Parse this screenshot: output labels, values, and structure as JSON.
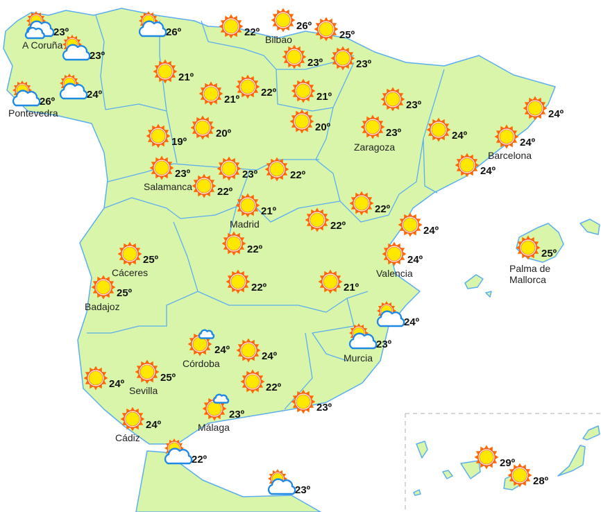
{
  "map": {
    "land_color": "#d9f5a9",
    "border_color": "#5aaef0",
    "sun_color": "#ffe800",
    "sun_rays_color": "#ff6a00",
    "cloud_stroke_color": "#1e88e5"
  },
  "forecasts": [
    {
      "icon": "partly-cloudy-icon",
      "temp": "23º",
      "city": "A Coruña"
    },
    {
      "icon": "partly-cloudy-icon",
      "temp": "23º",
      "city": ""
    },
    {
      "icon": "partly-cloudy-icon",
      "temp": "26º",
      "city": "Pontevedra"
    },
    {
      "icon": "partly-cloudy-icon",
      "temp": "24º",
      "city": ""
    },
    {
      "icon": "partly-cloudy-icon",
      "temp": "26º",
      "city": ""
    },
    {
      "icon": "sun-icon",
      "temp": "22º",
      "city": ""
    },
    {
      "icon": "sun-icon",
      "temp": "26º",
      "city": "Bilbao"
    },
    {
      "icon": "sun-icon",
      "temp": "25º",
      "city": ""
    },
    {
      "icon": "sun-icon",
      "temp": "23º",
      "city": ""
    },
    {
      "icon": "sun-icon",
      "temp": "23º",
      "city": ""
    },
    {
      "icon": "sun-icon",
      "temp": "21º",
      "city": ""
    },
    {
      "icon": "sun-icon",
      "temp": "21º",
      "city": ""
    },
    {
      "icon": "sun-icon",
      "temp": "22º",
      "city": ""
    },
    {
      "icon": "sun-icon",
      "temp": "21º",
      "city": ""
    },
    {
      "icon": "sun-icon",
      "temp": "20º",
      "city": ""
    },
    {
      "icon": "sun-icon",
      "temp": "23º",
      "city": ""
    },
    {
      "icon": "sun-icon",
      "temp": "24º",
      "city": ""
    },
    {
      "icon": "sun-icon",
      "temp": "19º",
      "city": ""
    },
    {
      "icon": "sun-icon",
      "temp": "20º",
      "city": ""
    },
    {
      "icon": "sun-icon",
      "temp": "23º",
      "city": "Zaragoza"
    },
    {
      "icon": "sun-icon",
      "temp": "24º",
      "city": ""
    },
    {
      "icon": "sun-icon",
      "temp": "24º",
      "city": "Barcelona"
    },
    {
      "icon": "sun-icon",
      "temp": "23º",
      "city": "Salamanca"
    },
    {
      "icon": "sun-icon",
      "temp": "23º",
      "city": ""
    },
    {
      "icon": "sun-icon",
      "temp": "22º",
      "city": ""
    },
    {
      "icon": "sun-icon",
      "temp": "24º",
      "city": ""
    },
    {
      "icon": "sun-icon",
      "temp": "22º",
      "city": ""
    },
    {
      "icon": "sun-icon",
      "temp": "21º",
      "city": "Madrid"
    },
    {
      "icon": "sun-icon",
      "temp": "22º",
      "city": ""
    },
    {
      "icon": "sun-icon",
      "temp": "22º",
      "city": ""
    },
    {
      "icon": "sun-icon",
      "temp": "24º",
      "city": ""
    },
    {
      "icon": "sun-icon",
      "temp": "22º",
      "city": ""
    },
    {
      "icon": "sun-icon",
      "temp": "25º",
      "city": "Cáceres"
    },
    {
      "icon": "sun-icon",
      "temp": "24º",
      "city": "Valencia"
    },
    {
      "icon": "sun-icon",
      "temp": "25º",
      "city": "Palma de Mallorca",
      "city_lines": [
        "Palma de",
        "Mallorca"
      ]
    },
    {
      "icon": "sun-icon",
      "temp": "25º",
      "city": "Badajoz"
    },
    {
      "icon": "sun-icon",
      "temp": "22º",
      "city": ""
    },
    {
      "icon": "sun-icon",
      "temp": "21º",
      "city": ""
    },
    {
      "icon": "partly-cloudy-icon",
      "temp": "24º",
      "city": ""
    },
    {
      "icon": "sun-small-cloud-icon",
      "temp": "24º",
      "city": "Córdoba"
    },
    {
      "icon": "sun-icon",
      "temp": "24º",
      "city": ""
    },
    {
      "icon": "partly-cloudy-icon",
      "temp": "23º",
      "city": "Murcia"
    },
    {
      "icon": "sun-icon",
      "temp": "24º",
      "city": ""
    },
    {
      "icon": "sun-icon",
      "temp": "25º",
      "city": "Sevilla"
    },
    {
      "icon": "sun-icon",
      "temp": "22º",
      "city": ""
    },
    {
      "icon": "sun-icon",
      "temp": "23º",
      "city": ""
    },
    {
      "icon": "sun-small-cloud-icon",
      "temp": "23º",
      "city": "Málaga"
    },
    {
      "icon": "sun-icon",
      "temp": "24º",
      "city": "Cádiz"
    },
    {
      "icon": "partly-cloudy-icon",
      "temp": "22º",
      "city": ""
    },
    {
      "icon": "partly-cloudy-icon",
      "temp": "23º",
      "city": ""
    },
    {
      "icon": "sun-icon",
      "temp": "29º",
      "city": ""
    },
    {
      "icon": "sun-icon",
      "temp": "28º",
      "city": ""
    }
  ]
}
